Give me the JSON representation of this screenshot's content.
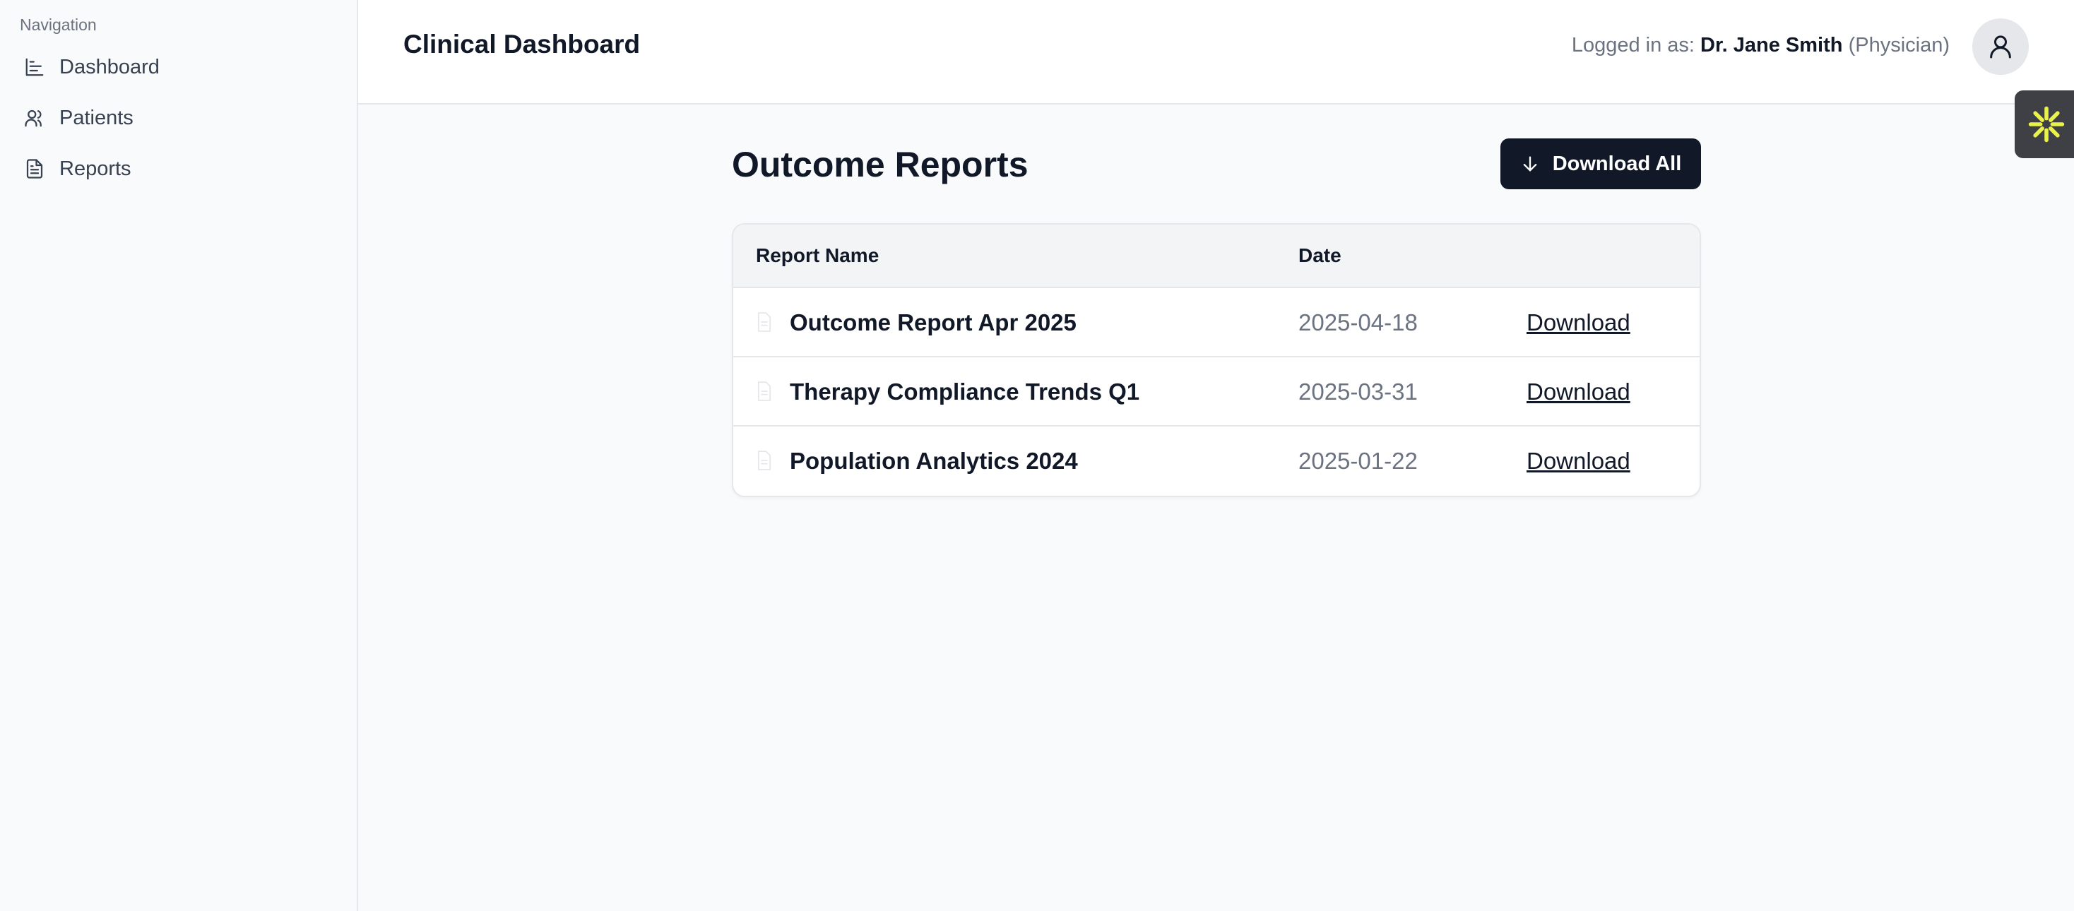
{
  "sidebar": {
    "heading": "Navigation",
    "items": [
      {
        "label": "Dashboard",
        "icon": "chart-icon"
      },
      {
        "label": "Patients",
        "icon": "users-icon"
      },
      {
        "label": "Reports",
        "icon": "file-icon"
      }
    ]
  },
  "header": {
    "title": "Clinical Dashboard",
    "login_prefix": "Logged in as:",
    "user_name": "Dr. Jane Smith",
    "user_role": "(Physician)"
  },
  "main": {
    "title": "Outcome Reports",
    "download_all_label": "Download All",
    "table": {
      "columns": [
        "Report Name",
        "Date"
      ],
      "rows": [
        {
          "name": "Outcome Report Apr 2025",
          "date": "2025-04-18",
          "action": "Download"
        },
        {
          "name": "Therapy Compliance Trends Q1",
          "date": "2025-03-31",
          "action": "Download"
        },
        {
          "name": "Population Analytics 2024",
          "date": "2025-01-22",
          "action": "Download"
        }
      ]
    }
  },
  "colors": {
    "primary_button": "#111827",
    "widget_bg": "#3f3f46",
    "widget_accent": "#e8f24a"
  }
}
